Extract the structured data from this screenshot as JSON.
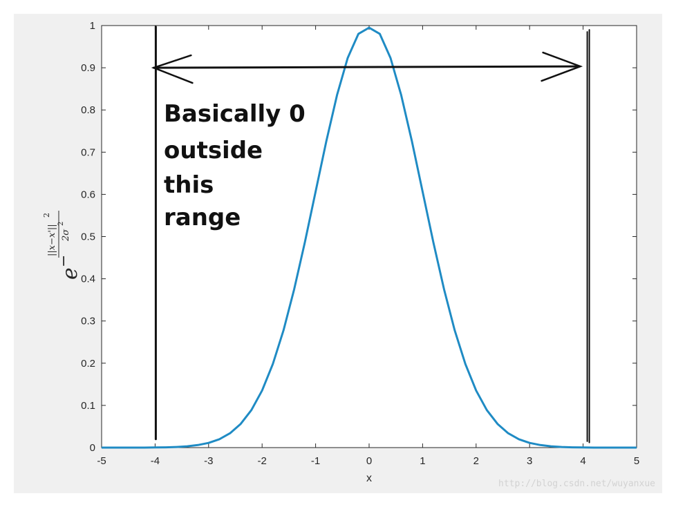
{
  "chart_data": {
    "type": "line",
    "xlabel": "x",
    "ylabel": "e^{-\\frac{||x-x'||^2}{2\\sigma^2}}",
    "ylabel_parts": {
      "base": "e",
      "minus": "−",
      "numerator": "||x−x'||",
      "numerator_power": "2",
      "denominator": "2σ",
      "denominator_power": "2"
    },
    "xlim": [
      -5,
      5
    ],
    "ylim": [
      0,
      1
    ],
    "xticks": [
      -5,
      -4,
      -3,
      -2,
      -1,
      0,
      1,
      2,
      3,
      4,
      5
    ],
    "yticks": [
      0,
      0.1,
      0.2,
      0.3,
      0.4,
      0.5,
      0.6,
      0.7,
      0.8,
      0.9,
      1
    ],
    "xtick_labels": [
      "-5",
      "-4",
      "-3",
      "-2",
      "-1",
      "0",
      "1",
      "2",
      "3",
      "4",
      "5"
    ],
    "ytick_labels": [
      "0",
      "0.1",
      "0.2",
      "0.3",
      "0.4",
      "0.5",
      "0.6",
      "0.7",
      "0.8",
      "0.9",
      "1"
    ],
    "grid": false,
    "series": [
      {
        "x": [
          -5,
          -4.8,
          -4.6,
          -4.4,
          -4.2,
          -4,
          -3.8,
          -3.6,
          -3.4,
          -3.2,
          -3,
          -2.8,
          -2.6,
          -2.4,
          -2.2,
          -2,
          -1.8,
          -1.6,
          -1.4,
          -1.2,
          -1,
          -0.8,
          -0.6,
          -0.4,
          -0.2,
          0,
          0.2,
          0.4,
          0.6,
          0.8,
          1,
          1.2,
          1.4,
          1.6,
          1.8,
          2,
          2.2,
          2.4,
          2.6,
          2.8,
          3,
          3.2,
          3.4,
          3.6,
          3.8,
          4,
          4.2,
          4.4,
          4.6,
          4.8,
          5
        ],
        "y": [
          0.0,
          0.0,
          0.0,
          0.0,
          0.0,
          0.0003,
          0.0007,
          0.0015,
          0.0031,
          0.006,
          0.0111,
          0.0198,
          0.034,
          0.0561,
          0.0889,
          0.1353,
          0.1979,
          0.278,
          0.3753,
          0.4868,
          0.6065,
          0.7261,
          0.8353,
          0.9231,
          0.9802,
          1.0,
          0.9802,
          0.9231,
          0.8353,
          0.7261,
          0.6065,
          0.4868,
          0.3753,
          0.278,
          0.1979,
          0.1353,
          0.0889,
          0.0561,
          0.034,
          0.0198,
          0.0111,
          0.006,
          0.0031,
          0.0015,
          0.0007,
          0.0003,
          0.0,
          0.0,
          0.0,
          0.0,
          0.0
        ],
        "color": "#1f8bc4"
      }
    ],
    "annotations": {
      "text_lines": [
        "Basically 0",
        "outside",
        "this",
        "range"
      ],
      "range": [
        -4,
        4
      ],
      "arrow_y": 0.9,
      "color": "#111111"
    }
  },
  "watermark": "http://blog.csdn.net/wuyanxue",
  "colors": {
    "figure_background": "#f0f0f0",
    "axes_background": "#ffffff",
    "axis_color": "#262626"
  }
}
